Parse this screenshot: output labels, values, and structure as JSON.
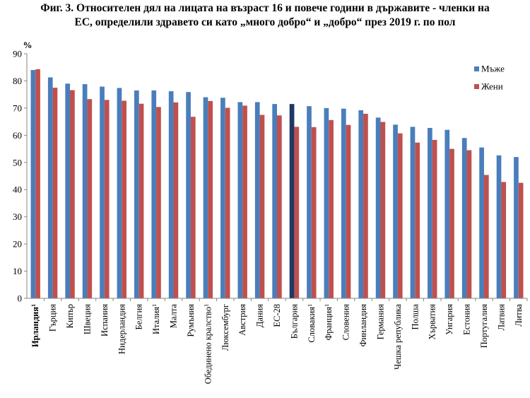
{
  "title_line1": "Фиг. 3. Относителен дял на лицата на възраст 16 и повече години в държавите - членки на",
  "title_line2": "ЕС, определили здравето си като „много добро“ и „добро“ през 2019 г. по пол",
  "chart_data": {
    "type": "bar",
    "ylabel": "%",
    "ylim": [
      0,
      90
    ],
    "yticks": [
      "0",
      "10",
      "20",
      "30",
      "40",
      "50",
      "60",
      "70",
      "80",
      "90"
    ],
    "grid": false,
    "legend_position": "top-right",
    "categories": [
      {
        "name": "Ирландия",
        "sup": "1",
        "bold": true
      },
      {
        "name": "Гърция"
      },
      {
        "name": "Кипър"
      },
      {
        "name": "Швеция"
      },
      {
        "name": "Испания"
      },
      {
        "name": "Нидерландия"
      },
      {
        "name": "Белгия"
      },
      {
        "name": "Италия",
        "sup": "1"
      },
      {
        "name": "Малта"
      },
      {
        "name": "Румъния"
      },
      {
        "name": "Обединено кралство",
        "sup": "1"
      },
      {
        "name": "Люксембург"
      },
      {
        "name": "Австрия"
      },
      {
        "name": "Дания"
      },
      {
        "name": "ЕС-28"
      },
      {
        "name": "България"
      },
      {
        "name": "Словакия",
        "sup": "1"
      },
      {
        "name": "Франция",
        "sup": "1"
      },
      {
        "name": "Словения"
      },
      {
        "name": "Финландия"
      },
      {
        "name": "Германия"
      },
      {
        "name": "Чешка република"
      },
      {
        "name": "Полша"
      },
      {
        "name": "Хърватия"
      },
      {
        "name": "Унгария"
      },
      {
        "name": "Естония"
      },
      {
        "name": "Португалия"
      },
      {
        "name": "Латвия"
      },
      {
        "name": "Литва"
      }
    ],
    "series": [
      {
        "name": "Мъже",
        "color": "#4a7ebb",
        "values": [
          84.0,
          81.3,
          79.0,
          78.8,
          77.9,
          77.4,
          76.5,
          76.5,
          76.2,
          75.9,
          74.0,
          73.8,
          72.2,
          72.2,
          71.5,
          71.5,
          70.7,
          70.0,
          69.8,
          69.2,
          66.5,
          63.9,
          63.1,
          62.7,
          62.0,
          59.0,
          55.5,
          52.6,
          52.0
        ]
      },
      {
        "name": "Жени",
        "color": "#c0504d",
        "values": [
          84.3,
          77.5,
          76.6,
          73.3,
          73.0,
          72.7,
          71.6,
          70.4,
          72.1,
          66.8,
          72.6,
          70.1,
          70.9,
          67.5,
          67.3,
          63.1,
          63.0,
          65.6,
          63.8,
          67.9,
          64.9,
          60.7,
          57.3,
          58.3,
          55.0,
          54.5,
          45.4,
          42.8,
          42.5
        ]
      }
    ],
    "highlight": {
      "category_index": 15,
      "series_index": 0,
      "color": "#1f3864"
    }
  }
}
